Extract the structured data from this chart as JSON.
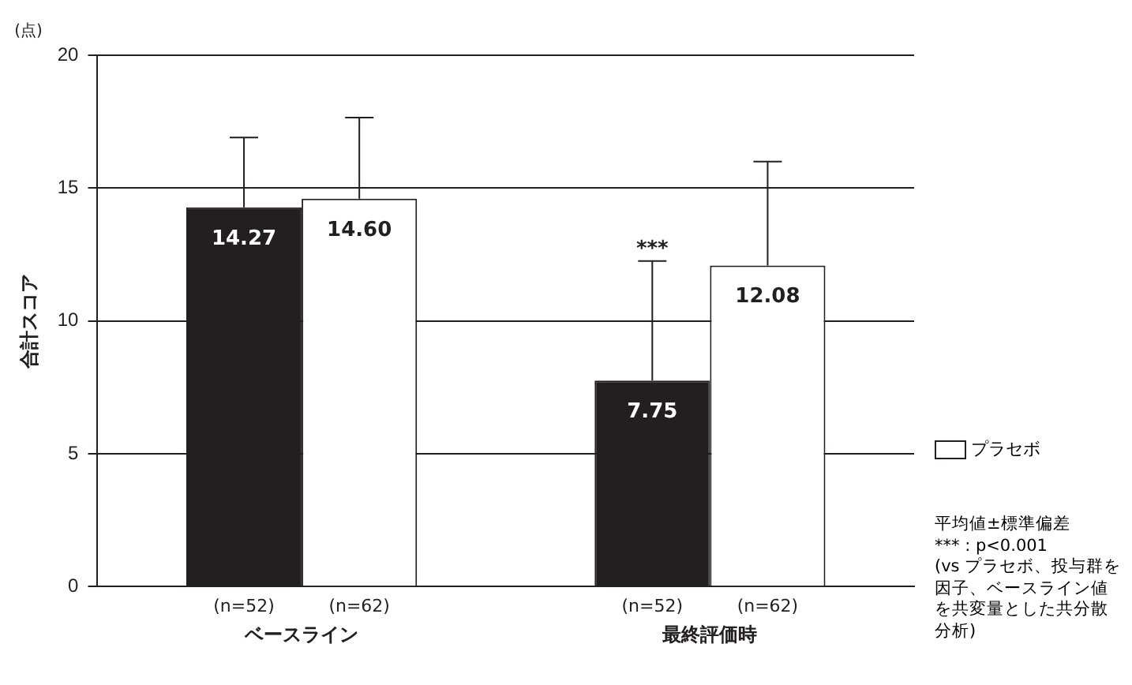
{
  "chart_data": {
    "type": "bar",
    "ylabel": "合計スコア",
    "categories": [
      "ベースライン",
      "最終評価時"
    ],
    "series": [
      {
        "color": "#231f20",
        "values": [
          14.27,
          7.75
        ],
        "value_labels": [
          "14.27",
          "7.75"
        ],
        "errors": [
          [
            14.27,
            16.9
          ],
          [
            7.75,
            12.25
          ]
        ]
      },
      {
        "name": "プラセボ",
        "color": "#ffffff",
        "values": [
          14.6,
          12.08
        ],
        "value_labels": [
          "14.60",
          "12.08"
        ],
        "errors": [
          [
            14.6,
            17.65
          ],
          [
            12.08,
            16
          ]
        ]
      }
    ],
    "ylim": [
      0,
      20
    ],
    "yticks": [
      0,
      5,
      10,
      15,
      20
    ],
    "grid": "y",
    "legend": "right",
    "annotations": [
      "(点)",
      "(n=52)",
      "(n=62)",
      "(n=52)",
      "(n=62)",
      {
        "text": "***",
        "x": "最終評価時",
        "y": 12.25
      },
      "平均値±標準偏差",
      "*** : p<0.001",
      "(vs プラセボ、投与群を因子、ベースライン値を共変量とした共分散分析)"
    ]
  }
}
